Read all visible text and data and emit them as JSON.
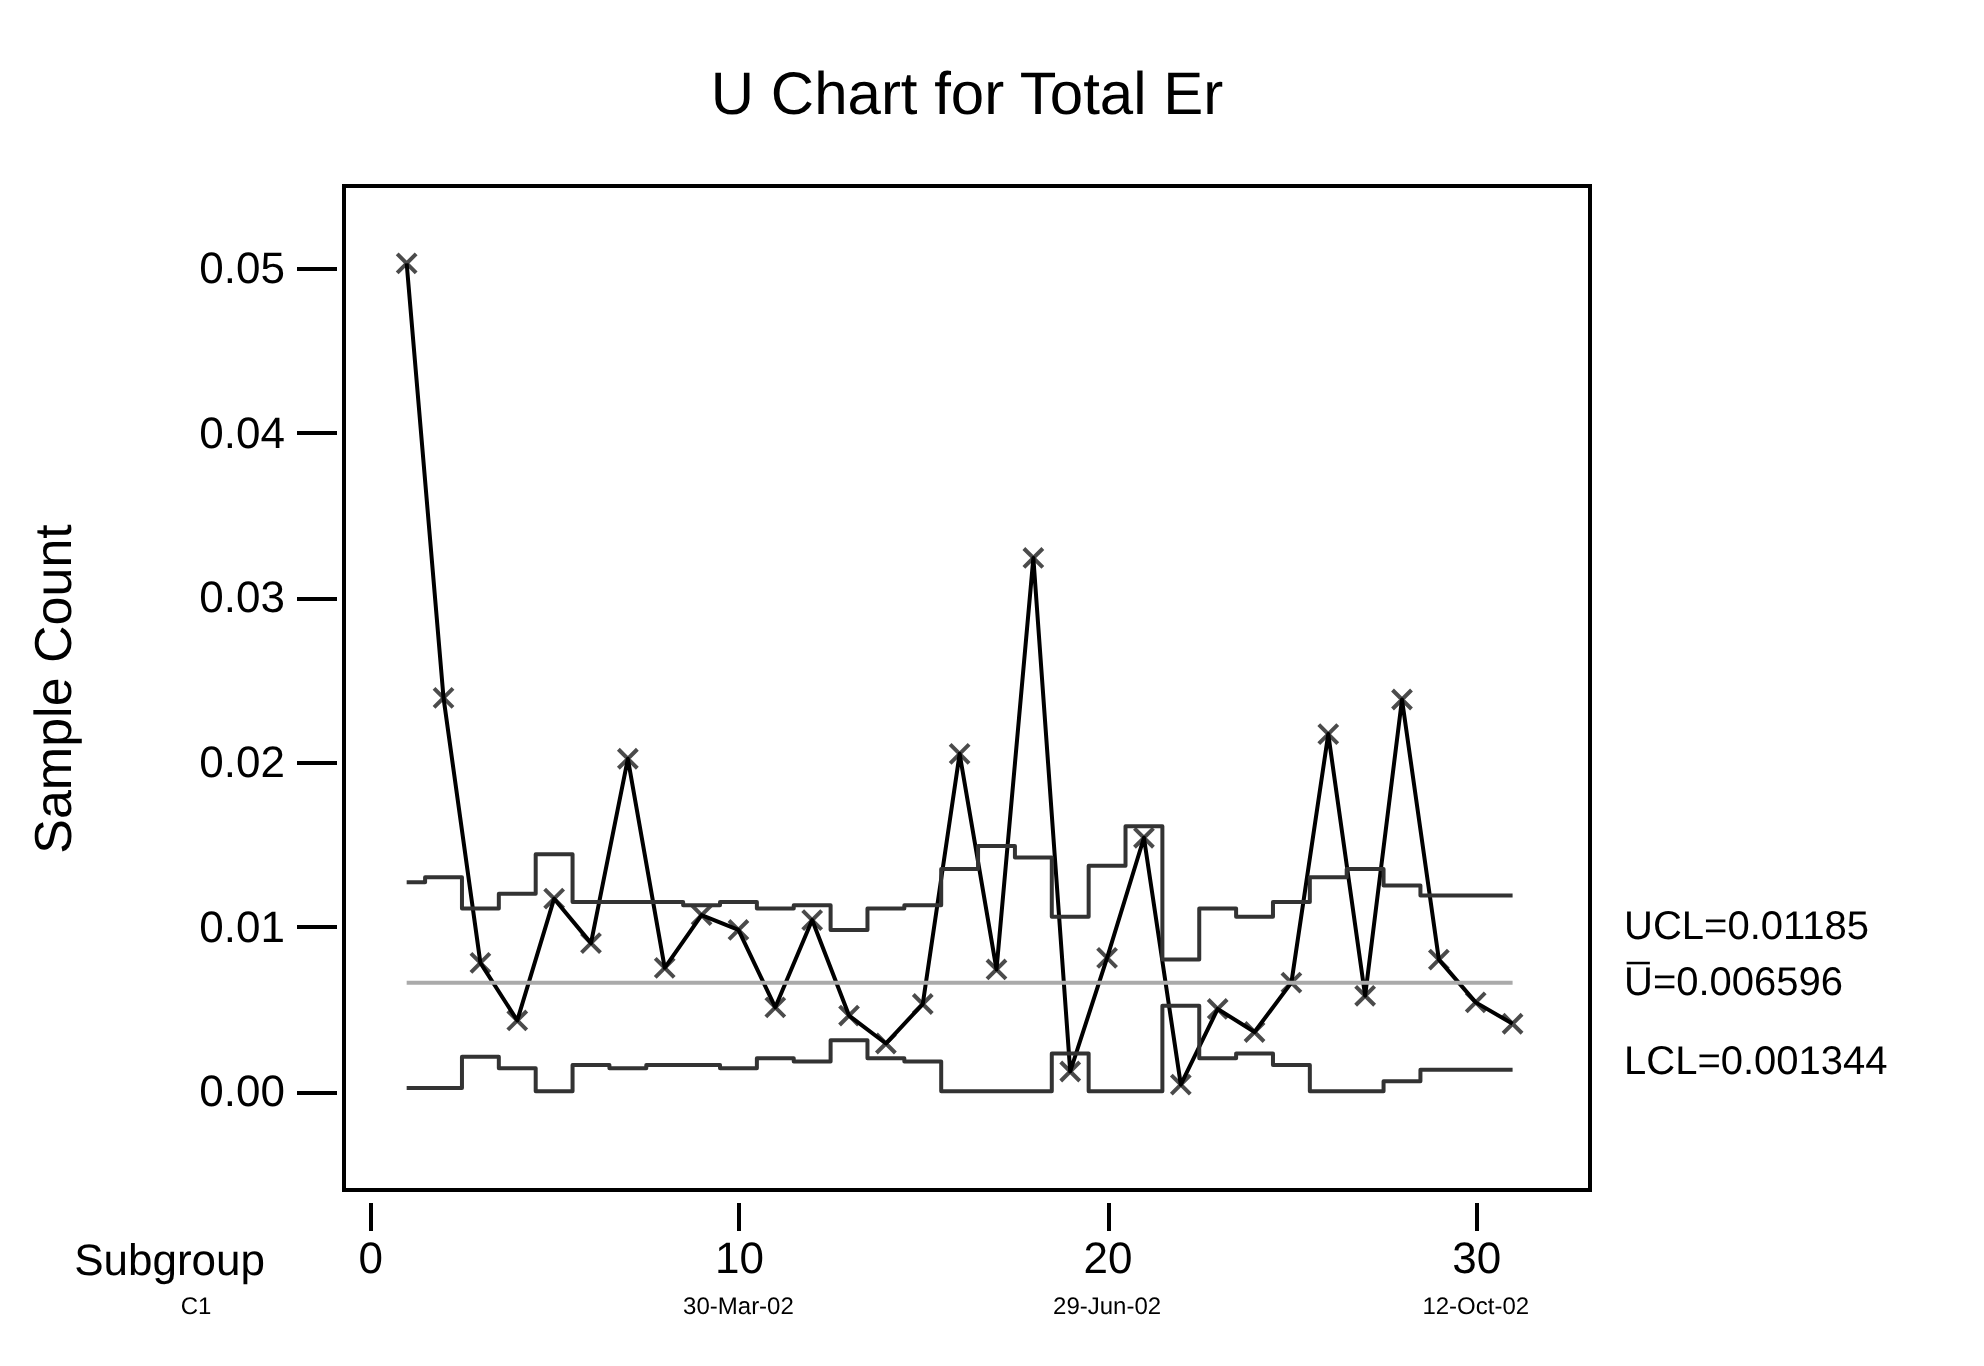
{
  "chart_data": {
    "type": "line",
    "title": "U Chart for Total Er",
    "xlabel": "Subgroup",
    "ylabel": "Sample Count",
    "annotations": [
      "C1",
      "30-Mar-02",
      "29-Jun-02",
      "12-Oct-02"
    ],
    "x": [
      1,
      2,
      3,
      4,
      5,
      6,
      7,
      8,
      9,
      10,
      11,
      12,
      13,
      14,
      15,
      16,
      17,
      18,
      19,
      20,
      21,
      22,
      23,
      24,
      25,
      26,
      27,
      28,
      29,
      30,
      31
    ],
    "series": [
      {
        "color": "#000000",
        "marker": "cross",
        "values": [
          0.0503,
          0.0239,
          0.0078,
          0.0043,
          0.0117,
          0.009,
          0.0202,
          0.0075,
          0.0107,
          0.0098,
          0.0051,
          0.0104,
          0.0046,
          0.0029,
          0.0053,
          0.0205,
          0.0074,
          0.0324,
          0.0012,
          0.0081,
          0.0154,
          0.0004,
          0.005,
          0.0036,
          0.0066,
          0.0217,
          0.0058,
          0.0238,
          0.008,
          0.0054,
          0.0041
        ]
      },
      {
        "type": "step",
        "name": "UCL=0.01185",
        "color": "#333333",
        "values": [
          0.0127,
          0.013,
          0.0111,
          0.012,
          0.0144,
          0.0115,
          0.0115,
          0.0115,
          0.0113,
          0.0115,
          0.0111,
          0.0113,
          0.0098,
          0.0111,
          0.0113,
          0.0135,
          0.0149,
          0.0142,
          0.0106,
          0.0137,
          0.0161,
          0.008,
          0.0111,
          0.0106,
          0.0115,
          0.013,
          0.0135,
          0.0125,
          0.0119,
          0.0119,
          0.0119
        ]
      },
      {
        "type": "step",
        "name": "LCL=0.001344",
        "color": "#333333",
        "values": [
          0.0002,
          0.0002,
          0.0021,
          0.0014,
          0.0,
          0.0016,
          0.0014,
          0.0016,
          0.0016,
          0.0014,
          0.002,
          0.0018,
          0.0031,
          0.002,
          0.0018,
          0.0,
          0.0,
          0.0,
          0.0023,
          0.0,
          0.0,
          0.0052,
          0.002,
          0.0023,
          0.0016,
          0.0,
          0.0,
          0.0006,
          0.0013,
          0.0013,
          0.0013
        ]
      }
    ],
    "ref_lines": [
      {
        "axis": "y",
        "value": 0.006596,
        "label": "U̅=0.006596",
        "color": "#aaaaaa"
      }
    ],
    "xlim": [
      -0.7,
      33.1
    ],
    "xticks": [
      0,
      10,
      20,
      30
    ],
    "ylim": [
      -0.006,
      0.055
    ],
    "yticks": [
      {
        "value": 0,
        "label": "0.00"
      },
      0.01,
      0.02,
      0.03,
      0.04,
      0.05
    ],
    "grid": false
  }
}
